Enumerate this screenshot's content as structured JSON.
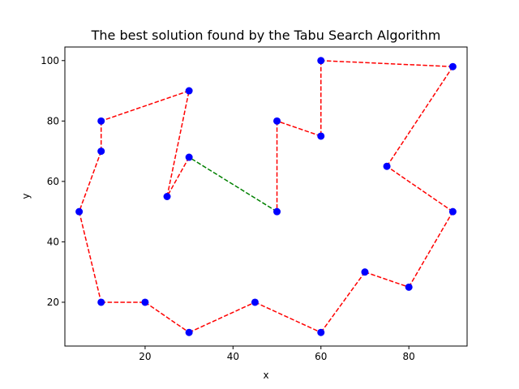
{
  "chart_data": {
    "type": "line",
    "title": "The best solution found by the Tabu Search Algorithm",
    "xlabel": "x",
    "ylabel": "y",
    "xlim": [
      1.75,
      93.25
    ],
    "ylim": [
      5.5,
      104.5
    ],
    "xticks": [
      20,
      40,
      60,
      80
    ],
    "yticks": [
      20,
      40,
      60,
      80,
      100
    ],
    "grid": false,
    "legend": "none",
    "colors": {
      "points": "#0000ff",
      "route": "#ff0000",
      "closing_edge": "#008000"
    },
    "route": [
      [
        30,
        68
      ],
      [
        25,
        55
      ],
      [
        30,
        90
      ],
      [
        10,
        80
      ],
      [
        10,
        70
      ],
      [
        5,
        50
      ],
      [
        10,
        20
      ],
      [
        20,
        20
      ],
      [
        30,
        10
      ],
      [
        45,
        20
      ],
      [
        60,
        10
      ],
      [
        70,
        30
      ],
      [
        80,
        25
      ],
      [
        90,
        50
      ],
      [
        75,
        65
      ],
      [
        90,
        98
      ],
      [
        60,
        100
      ],
      [
        60,
        75
      ],
      [
        50,
        80
      ],
      [
        50,
        50
      ]
    ]
  }
}
